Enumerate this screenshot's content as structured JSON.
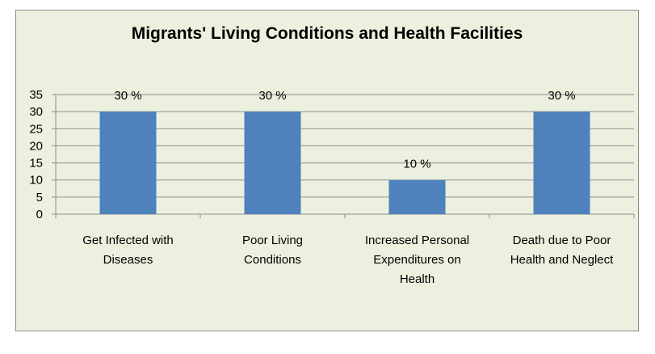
{
  "chart_data": {
    "type": "bar",
    "title": "Migrants' Living Conditions and Health Facilities",
    "categories": [
      "Get Infected with Diseases",
      "Poor Living Conditions",
      "Increased Personal Expenditures on Health",
      "Death due to Poor Health and Neglect"
    ],
    "category_lines": [
      [
        "Get Infected with",
        "Diseases"
      ],
      [
        "Poor Living",
        "Conditions"
      ],
      [
        "Increased Personal",
        "Expenditures on",
        "Health"
      ],
      [
        "Death due to Poor",
        "Health and Neglect"
      ]
    ],
    "values": [
      30,
      30,
      10,
      30
    ],
    "data_labels": [
      "30 %",
      "30 %",
      "10 %",
      "30 %"
    ],
    "yticks": [
      "0",
      "5",
      "10",
      "15",
      "20",
      "25",
      "30",
      "35"
    ],
    "ylim": [
      0,
      35
    ],
    "grid": true,
    "legend": "none",
    "bar_color": "#4f81bd"
  }
}
